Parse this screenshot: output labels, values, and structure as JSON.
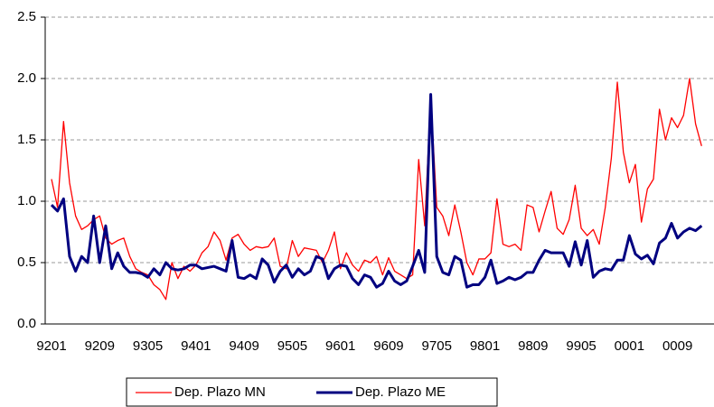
{
  "chart_data": {
    "type": "line",
    "categories": [
      "9201",
      null,
      null,
      null,
      null,
      null,
      null,
      null,
      "9209",
      null,
      null,
      null,
      null,
      null,
      null,
      null,
      "9305",
      null,
      null,
      null,
      null,
      null,
      null,
      null,
      "9401",
      null,
      null,
      null,
      null,
      null,
      null,
      null,
      "9409",
      null,
      null,
      null,
      null,
      null,
      null,
      null,
      "9505",
      null,
      null,
      null,
      null,
      null,
      null,
      null,
      "9601",
      null,
      null,
      null,
      null,
      null,
      null,
      null,
      "9609",
      null,
      null,
      null,
      null,
      null,
      null,
      null,
      "9705",
      null,
      null,
      null,
      null,
      null,
      null,
      null,
      "9801",
      null,
      null,
      null,
      null,
      null,
      null,
      null,
      "9809",
      null,
      null,
      null,
      null,
      null,
      null,
      null,
      "9905",
      null,
      null,
      null,
      null,
      null,
      null,
      null,
      "0001",
      null,
      null,
      null,
      null,
      null,
      null,
      null,
      "0009",
      null,
      null,
      null,
      null
    ],
    "series": [
      {
        "name": "Dep. Plazo MN",
        "color": "#ff0000",
        "width": 1.3,
        "values": [
          1.18,
          0.95,
          1.65,
          1.15,
          0.88,
          0.77,
          0.8,
          0.85,
          0.88,
          0.7,
          0.65,
          0.68,
          0.7,
          0.55,
          0.45,
          0.42,
          0.4,
          0.32,
          0.28,
          0.2,
          0.5,
          0.37,
          0.47,
          0.43,
          0.48,
          0.58,
          0.63,
          0.75,
          0.68,
          0.52,
          0.7,
          0.73,
          0.65,
          0.6,
          0.63,
          0.62,
          0.63,
          0.7,
          0.47,
          0.45,
          0.68,
          0.55,
          0.62,
          0.61,
          0.6,
          0.5,
          0.6,
          0.75,
          0.45,
          0.58,
          0.48,
          0.43,
          0.52,
          0.5,
          0.55,
          0.4,
          0.54,
          0.43,
          0.4,
          0.37,
          0.4,
          1.34,
          0.8,
          1.85,
          0.95,
          0.88,
          0.72,
          0.97,
          0.75,
          0.5,
          0.4,
          0.53,
          0.53,
          0.58,
          1.02,
          0.65,
          0.63,
          0.65,
          0.6,
          0.97,
          0.95,
          0.75,
          0.92,
          1.08,
          0.78,
          0.73,
          0.85,
          1.13,
          0.78,
          0.72,
          0.77,
          0.65,
          0.95,
          1.35,
          1.97,
          1.4,
          1.15,
          1.3,
          0.83,
          1.1,
          1.18,
          1.75,
          1.5,
          1.68,
          1.6,
          1.7,
          2.0,
          1.63,
          1.45
        ]
      },
      {
        "name": "Dep. Plazo ME",
        "color": "#000080",
        "width": 3,
        "values": [
          0.97,
          0.92,
          1.02,
          0.55,
          0.43,
          0.55,
          0.5,
          0.88,
          0.5,
          0.8,
          0.45,
          0.58,
          0.47,
          0.42,
          0.42,
          0.41,
          0.38,
          0.45,
          0.4,
          0.5,
          0.45,
          0.44,
          0.45,
          0.48,
          0.48,
          0.45,
          0.46,
          0.47,
          0.45,
          0.43,
          0.68,
          0.38,
          0.37,
          0.4,
          0.37,
          0.53,
          0.48,
          0.34,
          0.43,
          0.48,
          0.38,
          0.45,
          0.4,
          0.43,
          0.55,
          0.53,
          0.37,
          0.45,
          0.48,
          0.47,
          0.37,
          0.32,
          0.4,
          0.38,
          0.3,
          0.33,
          0.43,
          0.35,
          0.32,
          0.35,
          0.47,
          0.6,
          0.42,
          1.87,
          0.55,
          0.42,
          0.4,
          0.55,
          0.52,
          0.3,
          0.32,
          0.32,
          0.38,
          0.52,
          0.33,
          0.35,
          0.38,
          0.36,
          0.38,
          0.42,
          0.42,
          0.52,
          0.6,
          0.58,
          0.58,
          0.58,
          0.47,
          0.67,
          0.48,
          0.68,
          0.38,
          0.43,
          0.45,
          0.44,
          0.52,
          0.52,
          0.72,
          0.57,
          0.53,
          0.56,
          0.49,
          0.66,
          0.7,
          0.82,
          0.7,
          0.75,
          0.78,
          0.76,
          0.8
        ]
      }
    ],
    "ylim": [
      0,
      2.5
    ],
    "yticks": [
      {
        "value": 0,
        "label": "0.0"
      },
      0.5,
      {
        "value": 1,
        "label": "1.0"
      },
      1.5,
      {
        "value": 2,
        "label": "2.0"
      },
      2.5
    ],
    "grid": true,
    "legend": "bottom"
  }
}
